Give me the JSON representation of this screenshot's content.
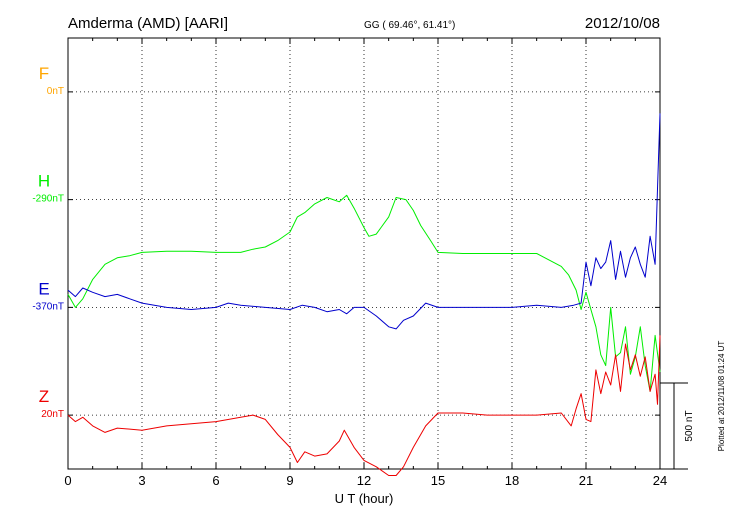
{
  "header": {
    "station": "Amderma (AMD)  [AARI]",
    "coords": "GG ( 69.46°,  61.41°)",
    "date": "2012/10/08"
  },
  "side_note": "Plotted at 2012/11/08 01:24 UT",
  "scale_label": "500 nT",
  "chart_data": {
    "type": "line",
    "title": "",
    "xlabel": "U T (hour)",
    "ylabel": "",
    "xlim": [
      0,
      24
    ],
    "ylim_nT_relative": [
      -1000,
      1000
    ],
    "x_ticks": [
      "0",
      "3",
      "6",
      "9",
      "12",
      "15",
      "18",
      "21",
      "24"
    ],
    "grid": true,
    "legend": "left",
    "channels": [
      {
        "name": "F",
        "offset_label": "0nT",
        "color": "#ffa500",
        "baseline_nT": 750
      },
      {
        "name": "H",
        "offset_label": "-290nT",
        "color": "#00ee00",
        "baseline_nT": 250
      },
      {
        "name": "E",
        "offset_label": "-370nT",
        "color": "#0000cc",
        "baseline_nT": -250
      },
      {
        "name": "Z",
        "offset_label": "20nT",
        "color": "#ee0000",
        "baseline_nT": -750
      }
    ],
    "series": [
      {
        "name": "H",
        "color": "#00ee00",
        "x": [
          0,
          0.3,
          0.6,
          1,
          1.5,
          2,
          2.5,
          3,
          4,
          5,
          6,
          7,
          7.5,
          8,
          8.5,
          9,
          9.3,
          9.6,
          10,
          10.5,
          11,
          11.3,
          11.6,
          12,
          12.2,
          12.5,
          13,
          13.3,
          13.7,
          14,
          14.3,
          14.7,
          15,
          16,
          17,
          18,
          19,
          20,
          20.3,
          20.6,
          20.8,
          21,
          21.2,
          21.4,
          21.6,
          21.8,
          22,
          22.2,
          22.4,
          22.6,
          22.8,
          23,
          23.2,
          23.4,
          23.6,
          23.8,
          24
        ],
        "y": [
          -190,
          -250,
          -210,
          -120,
          -50,
          -20,
          -10,
          5,
          10,
          10,
          5,
          5,
          20,
          30,
          60,
          100,
          170,
          190,
          230,
          260,
          240,
          270,
          210,
          120,
          80,
          90,
          170,
          260,
          250,
          200,
          130,
          60,
          5,
          0,
          0,
          0,
          0,
          -60,
          -100,
          -170,
          -260,
          -180,
          -260,
          -340,
          -470,
          -520,
          -250,
          -480,
          -460,
          -340,
          -560,
          -480,
          -340,
          -520,
          -640,
          -380,
          -550
        ]
      },
      {
        "name": "E",
        "color": "#0000cc",
        "x": [
          0,
          0.3,
          0.6,
          1,
          1.5,
          2,
          2.5,
          3,
          4,
          5,
          6,
          6.5,
          7,
          8,
          9,
          9.5,
          10,
          10.5,
          11,
          11.3,
          11.6,
          12,
          12.5,
          13,
          13.3,
          13.6,
          14,
          14.5,
          15,
          16,
          17,
          18,
          19,
          20,
          20.5,
          20.8,
          21,
          21.2,
          21.4,
          21.6,
          21.8,
          22,
          22.2,
          22.4,
          22.6,
          22.8,
          23,
          23.2,
          23.4,
          23.6,
          23.8,
          23.9,
          24
        ],
        "y": [
          -170,
          -200,
          -160,
          -180,
          -200,
          -190,
          -210,
          -230,
          -250,
          -260,
          -250,
          -230,
          -240,
          -250,
          -260,
          -240,
          -250,
          -270,
          -260,
          -280,
          -250,
          -250,
          -290,
          -340,
          -350,
          -310,
          -290,
          -230,
          -250,
          -250,
          -250,
          -250,
          -240,
          -250,
          -240,
          -230,
          -40,
          -150,
          -20,
          -70,
          -40,
          60,
          -120,
          10,
          -110,
          -20,
          30,
          -50,
          -110,
          80,
          -50,
          300,
          650
        ]
      },
      {
        "name": "Z",
        "color": "#ee0000",
        "x": [
          0,
          0.3,
          0.6,
          1,
          1.5,
          2,
          3,
          4,
          5,
          6,
          7,
          7.5,
          8,
          8.5,
          9,
          9.3,
          9.6,
          10,
          10.5,
          11,
          11.2,
          11.6,
          12,
          12.5,
          13,
          13.3,
          13.6,
          14,
          14.5,
          15,
          16,
          17,
          18,
          19,
          20,
          20.4,
          20.6,
          20.8,
          21,
          21.2,
          21.4,
          21.6,
          21.8,
          22,
          22.2,
          22.4,
          22.6,
          22.8,
          23,
          23.2,
          23.4,
          23.6,
          23.8,
          23.9,
          24
        ],
        "y": [
          -750,
          -780,
          -760,
          -800,
          -830,
          -810,
          -820,
          -800,
          -790,
          -780,
          -760,
          -750,
          -770,
          -840,
          -900,
          -970,
          -920,
          -940,
          -930,
          -870,
          -820,
          -900,
          -960,
          -990,
          -1030,
          -1030,
          -990,
          -900,
          -800,
          -740,
          -740,
          -750,
          -750,
          -750,
          -740,
          -800,
          -720,
          -650,
          -770,
          -780,
          -540,
          -650,
          -550,
          -610,
          -470,
          -640,
          -420,
          -540,
          -470,
          -570,
          -480,
          -640,
          -560,
          -700,
          -380
        ]
      }
    ]
  }
}
